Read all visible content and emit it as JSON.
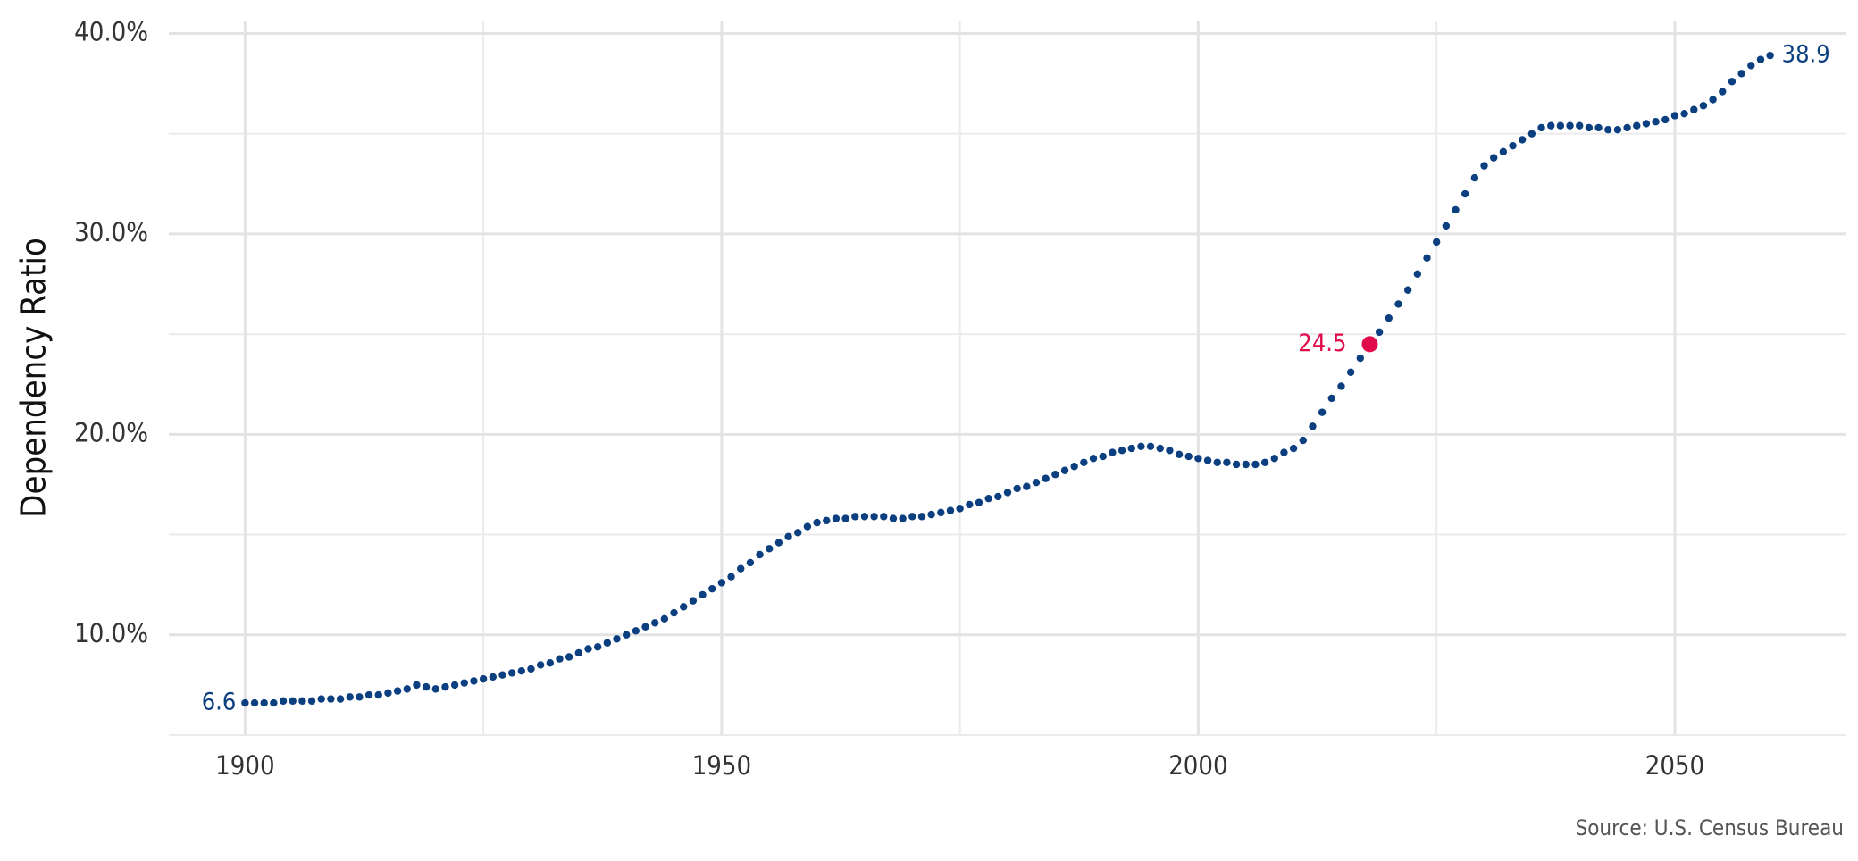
{
  "chart_data": {
    "type": "dotline",
    "y_label": "Dependency Ratio",
    "source": "Source: U.S. Census Bureau",
    "x": [
      1900,
      1901,
      1902,
      1903,
      1904,
      1905,
      1906,
      1907,
      1908,
      1909,
      1910,
      1911,
      1912,
      1913,
      1914,
      1915,
      1916,
      1917,
      1918,
      1919,
      1920,
      1921,
      1922,
      1923,
      1924,
      1925,
      1926,
      1927,
      1928,
      1929,
      1930,
      1931,
      1932,
      1933,
      1934,
      1935,
      1936,
      1937,
      1938,
      1939,
      1940,
      1941,
      1942,
      1943,
      1944,
      1945,
      1946,
      1947,
      1948,
      1949,
      1950,
      1951,
      1952,
      1953,
      1954,
      1955,
      1956,
      1957,
      1958,
      1959,
      1960,
      1961,
      1962,
      1963,
      1964,
      1965,
      1966,
      1967,
      1968,
      1969,
      1970,
      1971,
      1972,
      1973,
      1974,
      1975,
      1976,
      1977,
      1978,
      1979,
      1980,
      1981,
      1982,
      1983,
      1984,
      1985,
      1986,
      1987,
      1988,
      1989,
      1990,
      1991,
      1992,
      1993,
      1994,
      1995,
      1996,
      1997,
      1998,
      1999,
      2000,
      2001,
      2002,
      2003,
      2004,
      2005,
      2006,
      2007,
      2008,
      2009,
      2010,
      2011,
      2012,
      2013,
      2014,
      2015,
      2016,
      2017,
      2018,
      2019,
      2020,
      2021,
      2022,
      2023,
      2024,
      2025,
      2026,
      2027,
      2028,
      2029,
      2030,
      2031,
      2032,
      2033,
      2034,
      2035,
      2036,
      2037,
      2038,
      2039,
      2040,
      2041,
      2042,
      2043,
      2044,
      2045,
      2046,
      2047,
      2048,
      2049,
      2050,
      2051,
      2052,
      2053,
      2054,
      2055,
      2056,
      2057,
      2058,
      2059,
      2060
    ],
    "series": [
      {
        "color": "#0b3f80",
        "values": [
          6.6,
          6.6,
          6.6,
          6.6,
          6.7,
          6.7,
          6.7,
          6.7,
          6.8,
          6.8,
          6.8,
          6.9,
          6.9,
          7.0,
          7.0,
          7.1,
          7.2,
          7.3,
          7.5,
          7.4,
          7.3,
          7.4,
          7.5,
          7.6,
          7.7,
          7.8,
          7.9,
          8.0,
          8.1,
          8.2,
          8.3,
          8.5,
          8.6,
          8.8,
          8.9,
          9.1,
          9.3,
          9.4,
          9.6,
          9.8,
          10.0,
          10.2,
          10.4,
          10.6,
          10.8,
          11.1,
          11.4,
          11.7,
          12.0,
          12.3,
          12.6,
          12.9,
          13.3,
          13.6,
          14.0,
          14.3,
          14.6,
          14.9,
          15.1,
          15.4,
          15.6,
          15.7,
          15.8,
          15.8,
          15.9,
          15.9,
          15.9,
          15.9,
          15.8,
          15.8,
          15.9,
          15.9,
          16.0,
          16.1,
          16.2,
          16.3,
          16.5,
          16.6,
          16.8,
          16.9,
          17.1,
          17.3,
          17.4,
          17.6,
          17.8,
          18.0,
          18.2,
          18.4,
          18.6,
          18.8,
          18.9,
          19.1,
          19.2,
          19.3,
          19.4,
          19.4,
          19.3,
          19.2,
          19.0,
          18.9,
          18.8,
          18.7,
          18.6,
          18.6,
          18.5,
          18.5,
          18.5,
          18.6,
          18.8,
          19.1,
          19.3,
          19.7,
          20.4,
          21.1,
          21.8,
          22.4,
          23.1,
          23.8,
          24.5,
          25.1,
          25.8,
          26.5,
          27.2,
          28.0,
          28.8,
          29.6,
          30.4,
          31.2,
          32.0,
          32.8,
          33.4,
          33.8,
          34.1,
          34.4,
          34.7,
          35.0,
          35.3,
          35.4,
          35.4,
          35.4,
          35.4,
          35.3,
          35.3,
          35.2,
          35.2,
          35.3,
          35.4,
          35.5,
          35.6,
          35.7,
          35.9,
          36.0,
          36.2,
          36.4,
          36.7,
          37.1,
          37.6,
          38.0,
          38.4,
          38.7,
          38.9
        ]
      }
    ],
    "highlight": {
      "x": 2018,
      "value": 24.5,
      "color": "#e0094a"
    },
    "label_ends": true,
    "xlim": [
      1892,
      2068
    ],
    "ylim": [
      5,
      40.6
    ],
    "xticks": [
      1900,
      1950,
      2000,
      2050
    ],
    "minor_xticks": [
      1925,
      1975,
      2025
    ],
    "yticks": [
      {
        "value": 10,
        "label": "10.0%"
      },
      {
        "value": 20,
        "label": "20.0%"
      },
      {
        "value": 30,
        "label": "30.0%"
      },
      {
        "value": 40,
        "label": "40.0%"
      }
    ],
    "minor_yticks": [
      5,
      15,
      25,
      35
    ],
    "grid": true
  }
}
